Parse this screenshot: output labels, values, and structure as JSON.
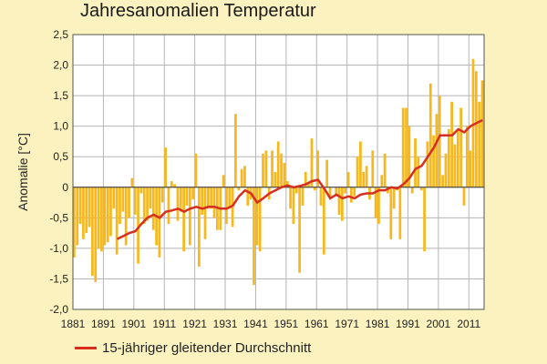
{
  "chart_data": {
    "type": "bar",
    "title": "Jahresanomalien Temperatur",
    "ylabel": "Anomalie [°C]",
    "xlabel": "",
    "ylim": [
      -2.0,
      2.5
    ],
    "xlim": [
      1881,
      2015
    ],
    "grid": true,
    "x_tick_labels": [
      "1881",
      "1891",
      "1901",
      "1911",
      "1921",
      "1931",
      "1941",
      "1951",
      "1961",
      "1971",
      "1981",
      "1991",
      "2001",
      "2011"
    ],
    "y_tick_labels": [
      "-2,0",
      "-1,5",
      "-1,0",
      "-0,5",
      "0",
      "0,5",
      "1,0",
      "1,5",
      "2,0",
      "2,5"
    ],
    "bar_color": "#f6b81c",
    "line_color": "#d62f1f",
    "legend_position": "bottom-left",
    "series": [
      {
        "x": [
          1881,
          1882,
          1883,
          1884,
          1885,
          1886,
          1887,
          1888,
          1889,
          1890,
          1891,
          1892,
          1893,
          1894,
          1895,
          1896,
          1897,
          1898,
          1899,
          1900,
          1901,
          1902,
          1903,
          1904,
          1905,
          1906,
          1907,
          1908,
          1909,
          1910,
          1911,
          1912,
          1913,
          1914,
          1915,
          1916,
          1917,
          1918,
          1919,
          1920,
          1921,
          1922,
          1923,
          1924,
          1925,
          1926,
          1927,
          1928,
          1929,
          1930,
          1931,
          1932,
          1933,
          1934,
          1935,
          1936,
          1937,
          1938,
          1939,
          1940,
          1941,
          1942,
          1943,
          1944,
          1945,
          1946,
          1947,
          1948,
          1949,
          1950,
          1951,
          1952,
          1953,
          1954,
          1955,
          1956,
          1957,
          1958,
          1959,
          1960,
          1961,
          1962,
          1963,
          1964,
          1965,
          1966,
          1967,
          1968,
          1969,
          1970,
          1971,
          1972,
          1973,
          1974,
          1975,
          1976,
          1977,
          1978,
          1979,
          1980,
          1981,
          1982,
          1983,
          1984,
          1985,
          1986,
          1987,
          1988,
          1989,
          1990,
          1991,
          1992,
          1993,
          1994,
          1995,
          1996,
          1997,
          1998,
          1999,
          2000,
          2001,
          2002,
          2003,
          2004,
          2005,
          2006,
          2007,
          2008,
          2009,
          2010,
          2011,
          2012,
          2013,
          2014,
          2015
        ],
        "values": [
          -1.15,
          -0.95,
          -0.6,
          -0.85,
          -0.75,
          -0.65,
          -1.45,
          -1.55,
          -1.0,
          -1.05,
          -0.95,
          -0.9,
          -0.8,
          -0.35,
          -1.1,
          -0.6,
          -0.4,
          -0.95,
          -0.5,
          0.15,
          -0.45,
          -1.25,
          -0.1,
          -0.6,
          -0.55,
          -0.35,
          -0.7,
          -0.95,
          -1.15,
          -0.25,
          0.65,
          -0.6,
          0.1,
          0.05,
          -0.55,
          -0.4,
          -1.05,
          -0.3,
          -0.95,
          -0.2,
          0.55,
          -1.3,
          -0.45,
          -0.85,
          -0.35,
          -0.35,
          -0.5,
          -0.7,
          -0.7,
          0.2,
          -0.6,
          -0.35,
          -0.65,
          1.2,
          -0.05,
          0.3,
          0.35,
          -0.3,
          -0.2,
          -1.6,
          -0.95,
          -1.05,
          0.55,
          0.6,
          -0.2,
          0.6,
          0.25,
          0.75,
          0.55,
          0.4,
          0.1,
          -0.35,
          -0.6,
          -0.1,
          -1.4,
          -0.3,
          0.25,
          0.05,
          0.8,
          -0.05,
          0.6,
          -0.3,
          -1.1,
          0.45,
          -0.2,
          0.0,
          -0.15,
          -0.45,
          -0.55,
          -0.1,
          0.25,
          -0.25,
          -0.15,
          0.5,
          0.75,
          0.25,
          0.35,
          -0.2,
          0.6,
          -0.5,
          -0.6,
          0.2,
          0.55,
          -0.1,
          -0.85,
          -0.35,
          -0.05,
          -0.85,
          1.3,
          1.3,
          1.0,
          -0.1,
          0.8,
          0.5,
          -0.05,
          -1.05,
          0.75,
          1.7,
          0.85,
          1.2,
          1.5,
          0.2,
          0.55,
          0.95,
          1.4,
          0.7,
          0.95,
          1.3,
          -0.3,
          1.0,
          0.6,
          2.1,
          1.9,
          1.4,
          1.75
        ],
        "kind": "bar"
      },
      {
        "name": "15-jähriger gleitender Durchschnitt",
        "x": [
          1895,
          1897,
          1899,
          1901,
          1903,
          1905,
          1907,
          1909,
          1911,
          1913,
          1915,
          1917,
          1919,
          1921,
          1923,
          1925,
          1927,
          1929,
          1931,
          1933,
          1935,
          1937,
          1939,
          1941,
          1943,
          1945,
          1947,
          1949,
          1951,
          1953,
          1955,
          1957,
          1959,
          1961,
          1963,
          1965,
          1967,
          1969,
          1971,
          1973,
          1975,
          1977,
          1979,
          1981,
          1983,
          1985,
          1987,
          1989,
          1991,
          1993,
          1995,
          1997,
          1999,
          2001,
          2003,
          2005,
          2007,
          2009,
          2011,
          2013,
          2015
        ],
        "values": [
          -0.85,
          -0.8,
          -0.75,
          -0.72,
          -0.6,
          -0.5,
          -0.45,
          -0.5,
          -0.4,
          -0.38,
          -0.35,
          -0.4,
          -0.35,
          -0.32,
          -0.35,
          -0.32,
          -0.32,
          -0.35,
          -0.35,
          -0.3,
          -0.15,
          -0.05,
          -0.1,
          -0.25,
          -0.18,
          -0.1,
          -0.05,
          0.0,
          0.03,
          0.0,
          0.02,
          0.05,
          0.1,
          0.12,
          -0.02,
          -0.18,
          -0.12,
          -0.18,
          -0.15,
          -0.18,
          -0.12,
          -0.1,
          -0.1,
          -0.05,
          -0.05,
          0.0,
          -0.02,
          0.05,
          0.15,
          0.3,
          0.35,
          0.5,
          0.65,
          0.85,
          0.85,
          0.85,
          0.95,
          0.9,
          1.0,
          1.05,
          1.1
        ],
        "kind": "line"
      }
    ]
  }
}
